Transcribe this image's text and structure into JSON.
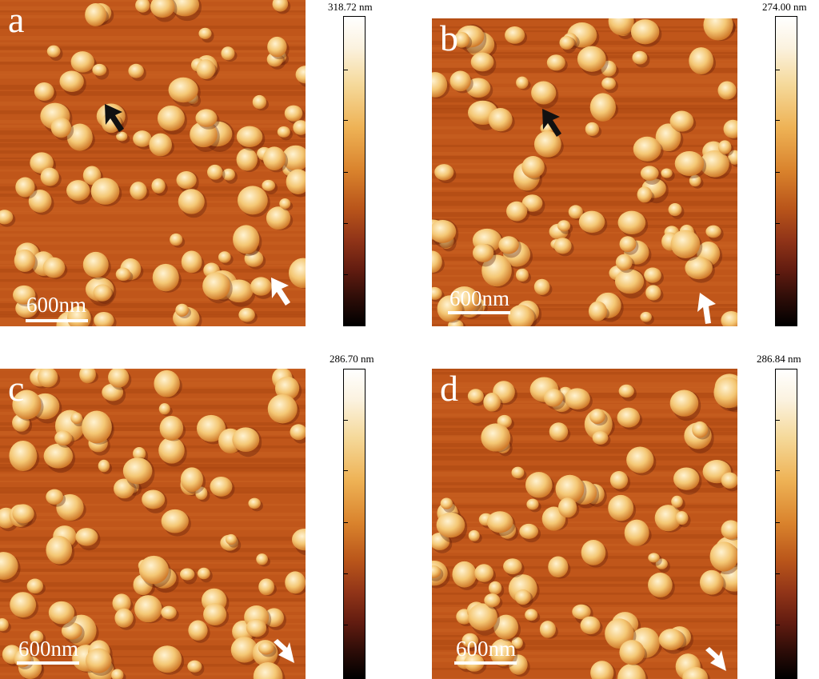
{
  "panels": [
    {
      "letter": "a",
      "scale_label": "600nm",
      "colorbar_max": "318.72 nm",
      "arrows": [
        "black-arrow",
        "white-arrow"
      ]
    },
    {
      "letter": "b",
      "scale_label": "600nm",
      "colorbar_max": "274.00 nm",
      "arrows": [
        "black-arrow",
        "white-arrow"
      ]
    },
    {
      "letter": "c",
      "scale_label": "600nm",
      "colorbar_max": "286.70 nm",
      "arrows": [
        "white-arrow"
      ]
    },
    {
      "letter": "d",
      "scale_label": "600nm",
      "colorbar_max": "286.84 nm",
      "arrows": [
        "white-arrow"
      ]
    }
  ],
  "colors": {
    "background": "#c0561a",
    "particle": "#f4c774",
    "highlight": "#fff3d2",
    "arrow_dark": "#111111",
    "arrow_light": "#ffffff"
  }
}
